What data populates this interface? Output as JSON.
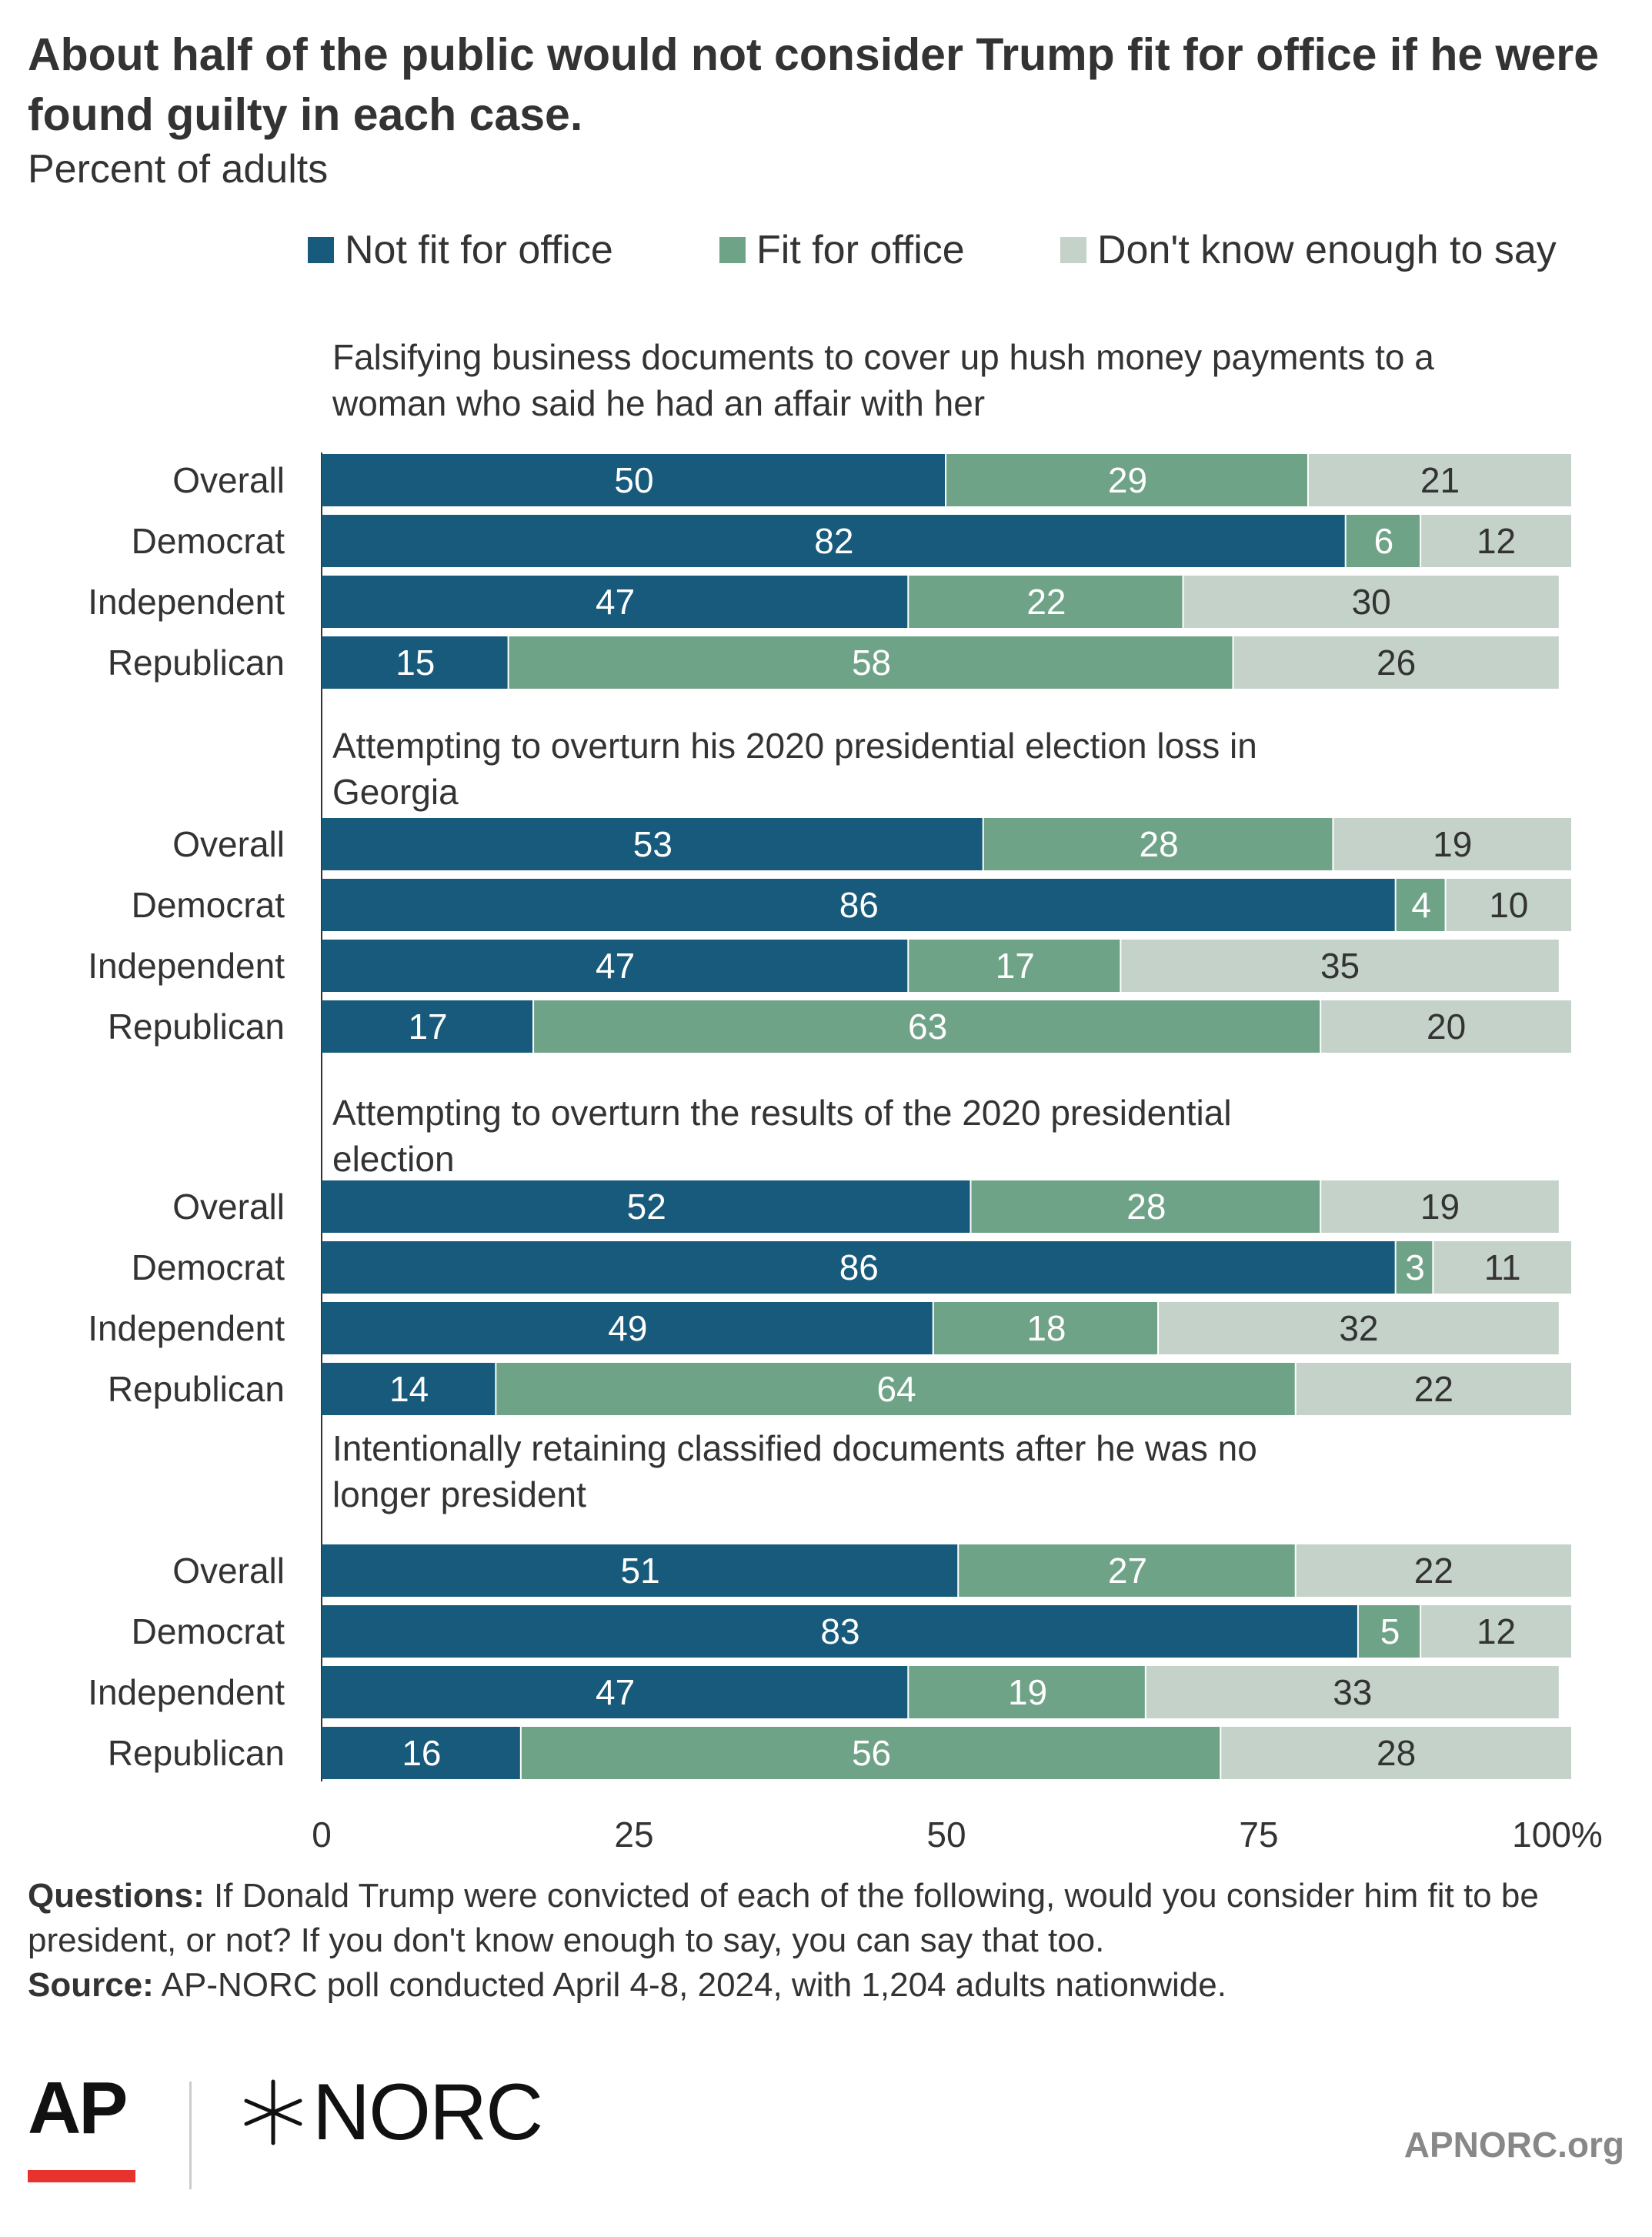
{
  "title": "About half of the public would not consider Trump fit for office if he were found guilty in each case.",
  "subtitle": "Percent of adults",
  "colors": {
    "not_fit": "#175a7c",
    "fit": "#6fa388",
    "dont_know": "#c4d2c9",
    "text_dark": "#333333",
    "label_light": "#ffffff"
  },
  "chart_data": {
    "type": "bar",
    "orientation": "horizontal",
    "stacked": true,
    "title": "About half of the public would not consider Trump fit for office if he were found guilty in each case.",
    "subtitle": "Percent of adults",
    "xlim": [
      0,
      100
    ],
    "x_ticks": [
      "0",
      "25",
      "50",
      "75",
      "100%"
    ],
    "x_tick_values": [
      0,
      25,
      50,
      75,
      100
    ],
    "grid": false,
    "legend_position": "top",
    "series": [
      {
        "name": "Not fit for office",
        "color": "#175a7c"
      },
      {
        "name": "Fit for office",
        "color": "#6fa388"
      },
      {
        "name": "Don't know enough to say",
        "color": "#c4d2c9"
      }
    ],
    "groups": [
      {
        "title": "Falsifying business documents to cover up hush money payments to a woman who said he had an affair with her",
        "rows": [
          {
            "label": "Overall",
            "values": [
              50,
              29,
              21
            ]
          },
          {
            "label": "Democrat",
            "values": [
              82,
              6,
              12
            ]
          },
          {
            "label": "Independent",
            "values": [
              47,
              22,
              30
            ]
          },
          {
            "label": "Republican",
            "values": [
              15,
              58,
              26
            ]
          }
        ]
      },
      {
        "title": "Attempting to overturn his 2020 presidential election loss in Georgia",
        "rows": [
          {
            "label": "Overall",
            "values": [
              53,
              28,
              19
            ]
          },
          {
            "label": "Democrat",
            "values": [
              86,
              4,
              10
            ]
          },
          {
            "label": "Independent",
            "values": [
              47,
              17,
              35
            ]
          },
          {
            "label": "Republican",
            "values": [
              17,
              63,
              20
            ]
          }
        ]
      },
      {
        "title": "Attempting to overturn the results of the 2020 presidential election",
        "rows": [
          {
            "label": "Overall",
            "values": [
              52,
              28,
              19
            ]
          },
          {
            "label": "Democrat",
            "values": [
              86,
              3,
              11
            ]
          },
          {
            "label": "Independent",
            "values": [
              49,
              18,
              32
            ]
          },
          {
            "label": "Republican",
            "values": [
              14,
              64,
              22
            ]
          }
        ]
      },
      {
        "title": "Intentionally retaining classified documents after he was no longer president",
        "rows": [
          {
            "label": "Overall",
            "values": [
              51,
              27,
              22
            ]
          },
          {
            "label": "Democrat",
            "values": [
              83,
              5,
              12
            ]
          },
          {
            "label": "Independent",
            "values": [
              47,
              19,
              33
            ]
          },
          {
            "label": "Republican",
            "values": [
              16,
              56,
              28
            ]
          }
        ]
      }
    ]
  },
  "notes": {
    "questions_label": "Questions:",
    "questions_text": " If Donald Trump were convicted of each of the following, would you consider him fit to be president, or not? If you don't know enough to say, you can say that too.",
    "source_label": "Source:",
    "source_text": " AP-NORC poll conducted April 4-8, 2024, with 1,204 adults nationwide."
  },
  "branding": {
    "ap_logo_text": "AP",
    "norc_logo_text": "NORC",
    "site": "APNORC.org"
  }
}
